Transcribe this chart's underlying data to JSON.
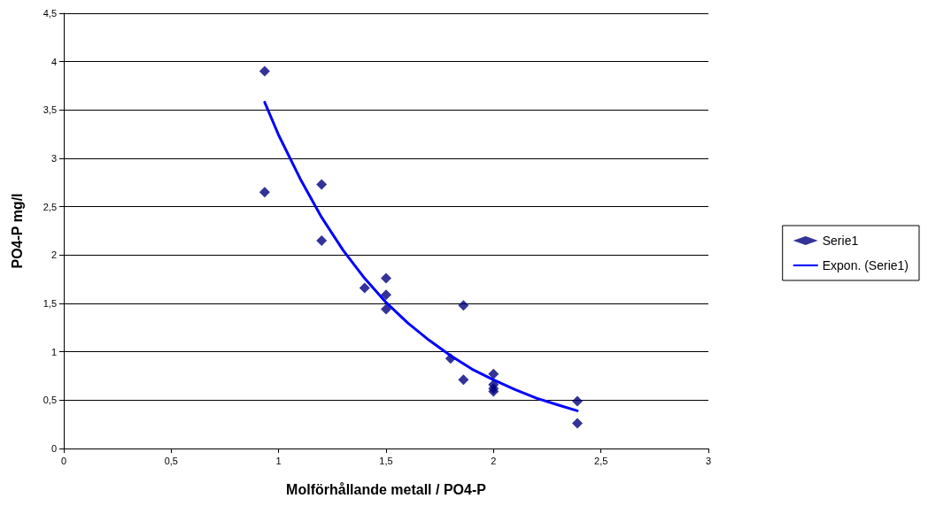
{
  "chart_data": {
    "type": "scatter",
    "xlabel": "Molförhållande metall / PO4-P",
    "ylabel": "PO4-P mg/l",
    "series": [
      {
        "name": "Serie1",
        "color": "#000080",
        "marker": "diamond",
        "x": [
          0.935,
          0.935,
          1.2,
          1.2,
          1.4,
          1.5,
          1.5,
          1.5,
          1.86,
          1.8,
          1.86,
          2.0,
          2.0,
          2.0,
          2.0,
          2.39,
          2.39
        ],
        "values": [
          3.9,
          2.65,
          2.73,
          2.15,
          1.66,
          1.76,
          1.59,
          1.44,
          1.48,
          0.93,
          0.71,
          0.77,
          0.66,
          0.62,
          0.59,
          0.49,
          0.26
        ]
      },
      {
        "name": "Expon. (Serie1)",
        "type": "line",
        "color": "#0000ff",
        "marker": "none",
        "line_style": "solid",
        "x": [
          0.935,
          1.0,
          1.1,
          1.2,
          1.3,
          1.4,
          1.5,
          1.6,
          1.7,
          1.8,
          1.9,
          2.0,
          2.1,
          2.2,
          2.3,
          2.39
        ],
        "values": [
          3.58,
          3.24,
          2.79,
          2.39,
          2.05,
          1.76,
          1.51,
          1.3,
          1.12,
          0.96,
          0.82,
          0.71,
          0.61,
          0.52,
          0.45,
          0.39
        ]
      }
    ],
    "xlim": [
      0,
      3
    ],
    "xticks": [
      0,
      {
        "value": 0.5,
        "label": "0,5"
      },
      1,
      {
        "value": 1.5,
        "label": "1,5"
      },
      2,
      {
        "value": 2.5,
        "label": "2,5"
      },
      3
    ],
    "ylim": [
      0,
      4.5
    ],
    "yticks": [
      0,
      {
        "value": 0.5,
        "label": "0,5"
      },
      1,
      {
        "value": 1.5,
        "label": "1,5"
      },
      2,
      {
        "value": 2.5,
        "label": "2,5"
      },
      3,
      {
        "value": 3.5,
        "label": "3,5"
      },
      4,
      {
        "value": 4.5,
        "label": "4,5"
      }
    ],
    "grid": "y",
    "legend": "right"
  }
}
